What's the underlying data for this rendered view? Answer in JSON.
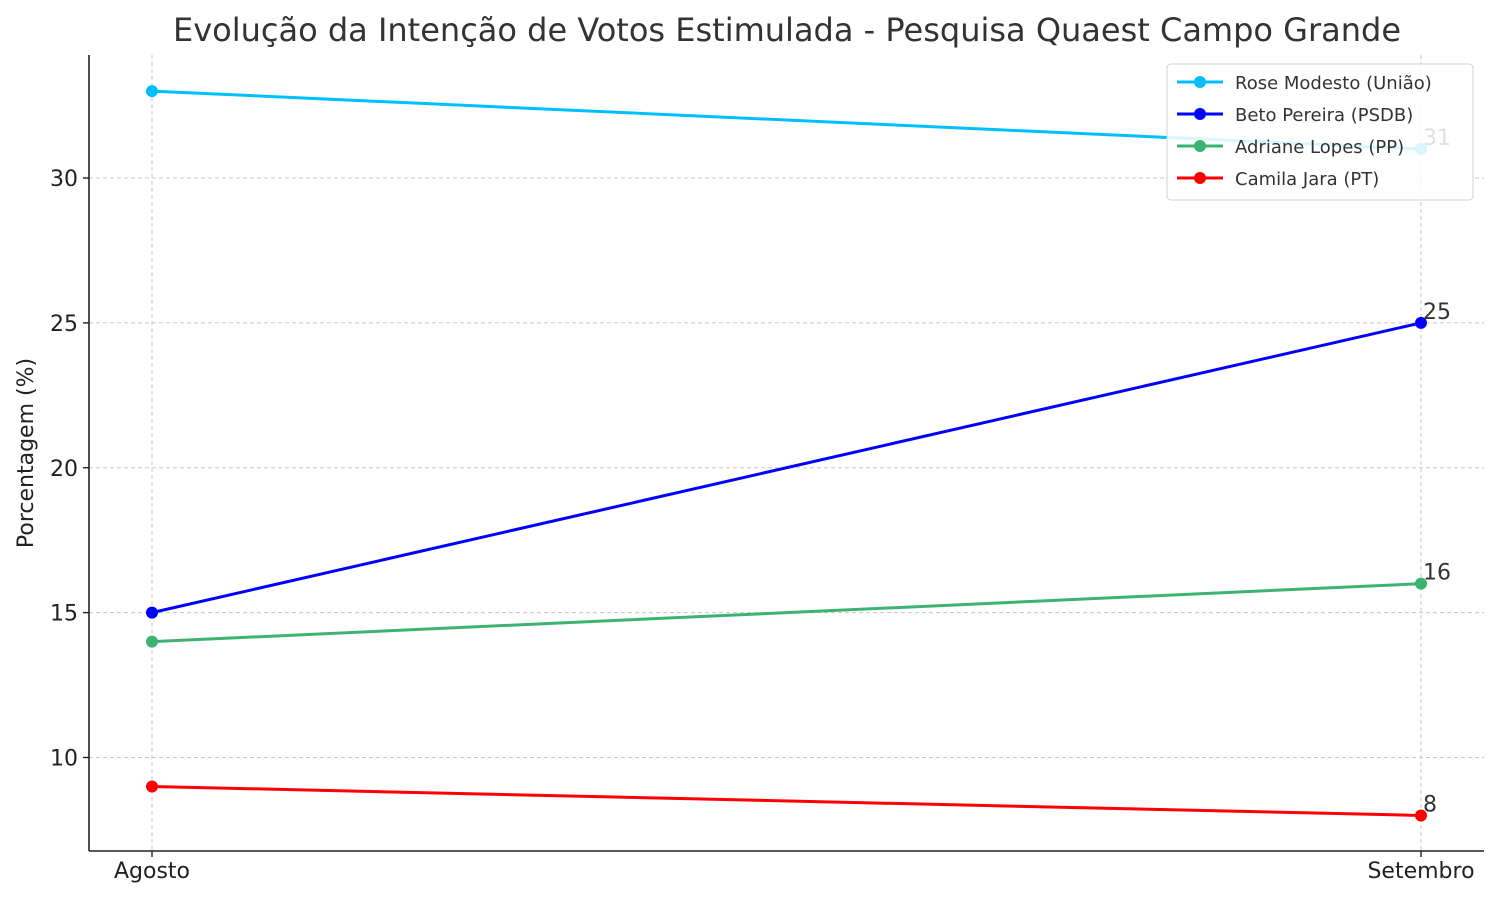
{
  "chart_data": {
    "type": "line",
    "title": "Evolução da Intenção de Votos Estimulada - Pesquisa Quaest Campo Grande",
    "xlabel": "",
    "ylabel": "Porcentagem (%)",
    "categories": [
      "Agosto",
      "Setembro"
    ],
    "ylim": [
      6.8,
      34.5
    ],
    "yticks": [
      10,
      15,
      20,
      25,
      30
    ],
    "grid": true,
    "legend_position": "top-right",
    "series": [
      {
        "name": "Rose Modesto (União)",
        "color": "#00bfff",
        "values": [
          33,
          31
        ],
        "end_label": "31"
      },
      {
        "name": "Beto Pereira (PSDB)",
        "color": "#0000ff",
        "values": [
          15,
          25
        ],
        "end_label": "25"
      },
      {
        "name": "Adriane Lopes (PP)",
        "color": "#3cb371",
        "values": [
          14,
          16
        ],
        "end_label": "16"
      },
      {
        "name": "Camila Jara (PT)",
        "color": "#ff0000",
        "values": [
          9,
          8
        ],
        "end_label": "8"
      }
    ]
  }
}
